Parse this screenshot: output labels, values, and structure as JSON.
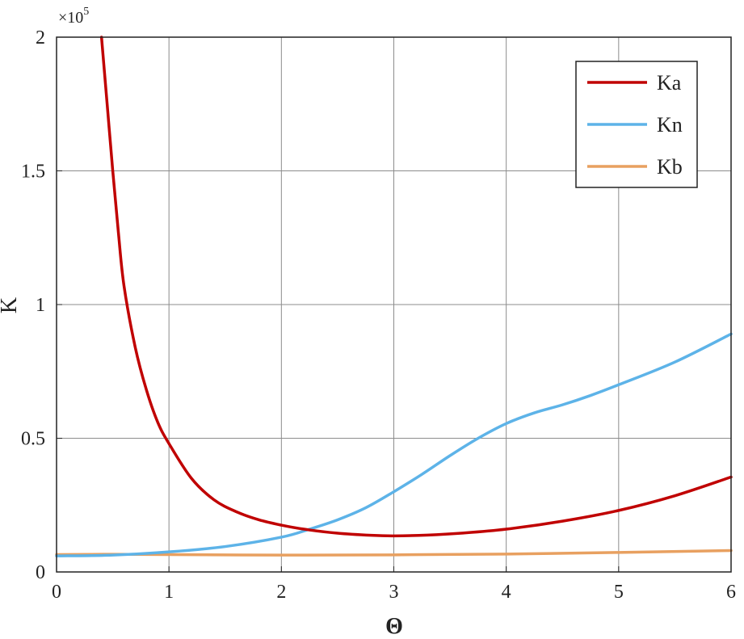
{
  "chart_data": {
    "type": "line",
    "xlabel": "Θ",
    "ylabel": "K",
    "xlim": [
      0,
      6
    ],
    "ylim": [
      0,
      200000
    ],
    "y_multiplier_text": "×10",
    "y_multiplier_exponent": "5",
    "x_ticks": [
      0,
      1,
      2,
      3,
      4,
      5,
      6
    ],
    "x_tick_labels": [
      "0",
      "1",
      "2",
      "3",
      "4",
      "5",
      "6"
    ],
    "y_ticks": [
      0,
      50000,
      100000,
      150000,
      200000
    ],
    "y_tick_labels": [
      "0",
      "0.5",
      "1",
      "1.5",
      "2"
    ],
    "grid": true,
    "legend_position": "top-right",
    "series": [
      {
        "name": "Ka",
        "color": "#c00000",
        "x": [
          0.4,
          0.45,
          0.5,
          0.55,
          0.6,
          0.7,
          0.8,
          0.9,
          1.0,
          1.2,
          1.4,
          1.6,
          1.8,
          2.0,
          2.2,
          2.5,
          2.8,
          3.0,
          3.3,
          3.6,
          4.0,
          4.5,
          5.0,
          5.5,
          6.0
        ],
        "y": [
          200000,
          175000,
          150000,
          127000,
          107000,
          84000,
          68000,
          56000,
          48000,
          35000,
          27000,
          22500,
          19500,
          17500,
          16000,
          14500,
          13700,
          13500,
          13800,
          14500,
          16000,
          19000,
          23000,
          28500,
          35500
        ]
      },
      {
        "name": "Kn",
        "color": "#5db3e8",
        "x": [
          0,
          0.5,
          1.0,
          1.5,
          2.0,
          2.25,
          2.5,
          2.75,
          3.0,
          3.25,
          3.5,
          3.75,
          4.0,
          4.25,
          4.5,
          4.75,
          5.0,
          5.5,
          6.0
        ],
        "y": [
          6000,
          6300,
          7500,
          9500,
          13000,
          16000,
          19500,
          24000,
          30000,
          36500,
          43500,
          50000,
          55500,
          59500,
          62500,
          66000,
          70000,
          78500,
          89000
        ]
      },
      {
        "name": "Kb",
        "color": "#e8a060",
        "x": [
          0,
          0.5,
          1.0,
          2.0,
          3.0,
          4.0,
          5.0,
          6.0
        ],
        "y": [
          6500,
          6600,
          6500,
          6300,
          6400,
          6700,
          7300,
          8000
        ]
      }
    ]
  }
}
